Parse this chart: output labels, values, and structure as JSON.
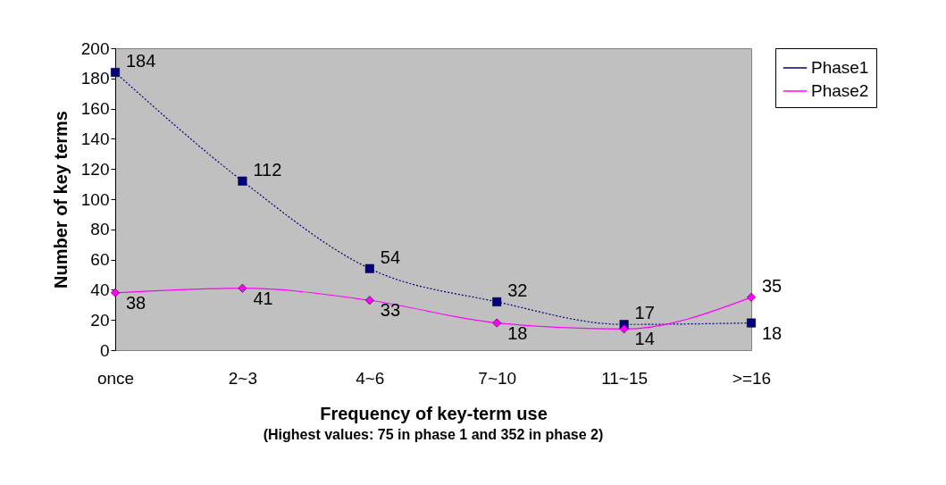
{
  "chart_data": {
    "type": "line",
    "xlabel": "Frequency of key-term use",
    "ylabel": "Number of key terms",
    "annotations": [
      "(Highest values: 75 in phase 1 and 352 in phase 2)"
    ],
    "categories": [
      "once",
      "2~3",
      "4~6",
      "7~10",
      "11~15",
      ">=16"
    ],
    "series": [
      {
        "name": "Phase1",
        "color": "#000080",
        "marker": "square",
        "line_style": "dotted",
        "values": [
          184,
          112,
          54,
          32,
          17,
          18
        ]
      },
      {
        "name": "Phase2",
        "color": "#ff00ff",
        "marker": "diamond",
        "line_style": "solid",
        "values": [
          38,
          41,
          33,
          18,
          14,
          35
        ]
      }
    ],
    "ylim": [
      0,
      200
    ],
    "yticks": [
      0,
      20,
      40,
      60,
      80,
      100,
      120,
      140,
      160,
      180,
      200
    ],
    "grid": false,
    "legend": "right",
    "data_labels": true
  }
}
